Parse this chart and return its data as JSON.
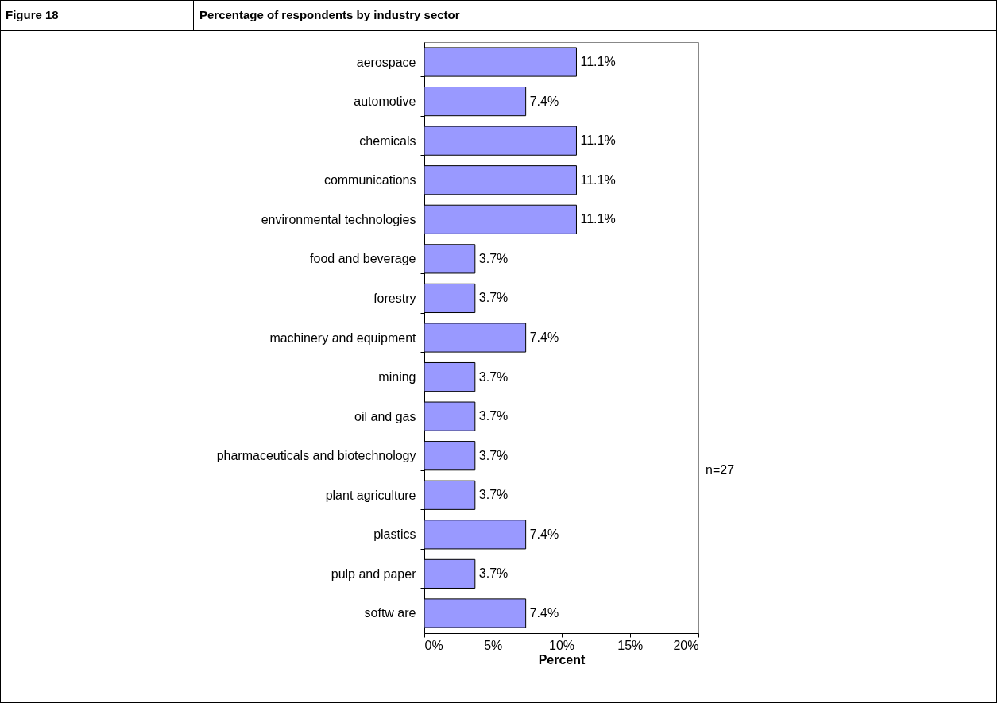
{
  "chart_data": {
    "type": "bar",
    "orientation": "horizontal",
    "title": "Percentage of respondents by industry sector",
    "xlabel": "Percent",
    "annotations": [
      "Figure 18",
      "n=27"
    ],
    "categories": [
      "aerospace",
      "automotive",
      "chemicals",
      "communications",
      "environmental technologies",
      "food and beverage",
      "forestry",
      "machinery and equipment",
      "mining",
      "oil and gas",
      "pharmaceuticals and biotechnology",
      "plant agriculture",
      "plastics",
      "pulp and paper",
      "softw are"
    ],
    "values": [
      11.1,
      7.4,
      11.1,
      11.1,
      11.1,
      3.7,
      3.7,
      7.4,
      3.7,
      3.7,
      3.7,
      3.7,
      7.4,
      3.7,
      7.4
    ],
    "value_labels": [
      "11.1%",
      "7.4%",
      "11.1%",
      "11.1%",
      "11.1%",
      "3.7%",
      "3.7%",
      "7.4%",
      "3.7%",
      "3.7%",
      "3.7%",
      "3.7%",
      "7.4%",
      "3.7%",
      "7.4%"
    ],
    "color": "#9999ff",
    "xlim": [
      0,
      20
    ],
    "xticks": [
      {
        "value": 0,
        "label": "0%"
      },
      {
        "value": 5,
        "label": "5%"
      },
      {
        "value": 10,
        "label": "10%"
      },
      {
        "value": 15,
        "label": "15%"
      },
      {
        "value": 20,
        "label": "20%"
      }
    ],
    "grid": false
  }
}
